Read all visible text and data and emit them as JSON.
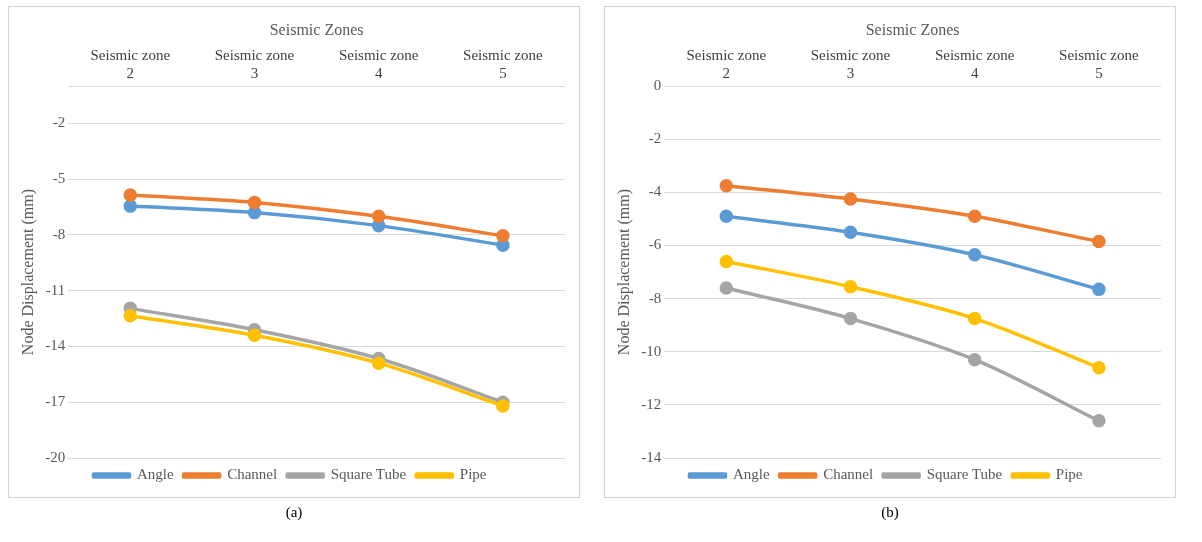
{
  "chart_data": [
    {
      "type": "line",
      "xlabel": "Seismic Zones",
      "ylabel": "Node Displacement (mm)",
      "categories": [
        "Seismic zone 2",
        "Seismic zone 3",
        "Seismic zone 4",
        "Seismic zone 5"
      ],
      "series": [
        {
          "name": "Angle",
          "color": "#5b9bd5",
          "values": [
            -6.45,
            -6.8,
            -7.5,
            -8.55
          ]
        },
        {
          "name": "Channel",
          "color": "#ed7d31",
          "values": [
            -5.85,
            -6.25,
            -7.0,
            -8.05
          ]
        },
        {
          "name": "Square Tube",
          "color": "#a5a5a5",
          "values": [
            -11.95,
            -13.1,
            -14.65,
            -17.0
          ]
        },
        {
          "name": "Pipe",
          "color": "#ffc000",
          "values": [
            -12.35,
            -13.4,
            -14.9,
            -17.2
          ]
        }
      ],
      "ylim": [
        -20,
        0
      ],
      "yticks": [
        -20,
        -17,
        -14,
        -11,
        -8,
        -5,
        -2,
        {
          "value": 0,
          "label": null
        }
      ],
      "grid": "y",
      "legend": "bottom",
      "marker": "circle",
      "line_style": "solid",
      "annotations": [
        "(a)"
      ]
    },
    {
      "type": "line",
      "xlabel": "Seismic Zones",
      "ylabel": "Node Displacement (mm)",
      "categories": [
        "Seismic zone 2",
        "Seismic zone 3",
        "Seismic zone 4",
        "Seismic zone 5"
      ],
      "series": [
        {
          "name": "Angle",
          "color": "#5b9bd5",
          "values": [
            -4.9,
            -5.5,
            -6.35,
            -7.65
          ]
        },
        {
          "name": "Channel",
          "color": "#ed7d31",
          "values": [
            -3.75,
            -4.25,
            -4.9,
            -5.85
          ]
        },
        {
          "name": "Square Tube",
          "color": "#a5a5a5",
          "values": [
            -7.6,
            -8.75,
            -10.3,
            -12.6
          ]
        },
        {
          "name": "Pipe",
          "color": "#ffc000",
          "values": [
            -6.6,
            -7.55,
            -8.75,
            -10.6
          ]
        }
      ],
      "ylim": [
        -14,
        0
      ],
      "yticks": [
        -14,
        -12,
        -10,
        -8,
        -6,
        -4,
        -2,
        0
      ],
      "grid": "y",
      "legend": "bottom",
      "marker": "circle",
      "line_style": "solid",
      "annotations": [
        "(b)"
      ]
    }
  ]
}
